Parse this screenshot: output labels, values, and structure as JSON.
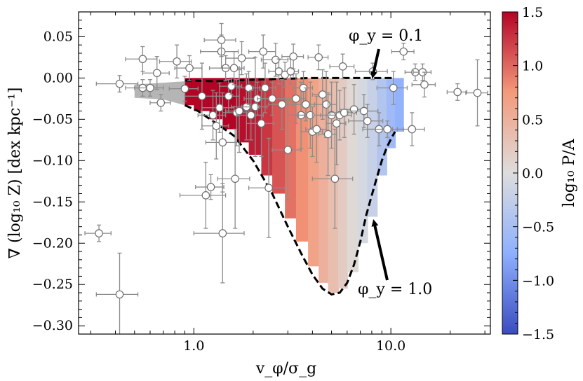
{
  "chart_data": {
    "type": "scatter",
    "title": "",
    "xlabel": "v_φ/σ_g",
    "ylabel": "∇ (log₁₀ Z)  [dex kpc⁻¹]",
    "xscale": "log",
    "xlim": [
      0.26,
      32
    ],
    "ylim": [
      -0.31,
      0.08
    ],
    "x_ticks": [
      {
        "value": 1.0,
        "label": "1.0"
      },
      {
        "value": 10.0,
        "label": "10.0"
      }
    ],
    "y_ticks": [
      {
        "value": 0.05,
        "label": "0.05"
      },
      {
        "value": 0.0,
        "label": "0.00"
      },
      {
        "value": -0.05,
        "label": "−0.05"
      },
      {
        "value": -0.1,
        "label": "−0.10"
      },
      {
        "value": -0.15,
        "label": "−0.15"
      },
      {
        "value": -0.2,
        "label": "−0.20"
      },
      {
        "value": -0.25,
        "label": "−0.25"
      },
      {
        "value": -0.3,
        "label": "−0.30"
      }
    ],
    "colorbar": {
      "label": "log₁₀ P/A",
      "range": [
        -1.5,
        1.5
      ],
      "ticks": [
        {
          "value": 1.5,
          "label": "1.5"
        },
        {
          "value": 1.0,
          "label": "1.0"
        },
        {
          "value": 0.5,
          "label": "0.5"
        },
        {
          "value": 0.0,
          "label": "0.0"
        },
        {
          "value": -0.5,
          "label": "−0.5"
        },
        {
          "value": -1.0,
          "label": "−1.0"
        },
        {
          "value": -1.5,
          "label": "−1.5"
        }
      ],
      "colors": [
        "#3b4cc0",
        "#dddddd",
        "#b40426"
      ]
    },
    "annotations": [
      {
        "text": "φ_y = 0.1",
        "points_to": [
          7.6,
          0.0
        ]
      },
      {
        "text": "φ_y = 1.0",
        "points_to": [
          8.5,
          -0.17
        ]
      }
    ],
    "model": {
      "upper_curve_phi_0_1": {
        "x": [
          0.9,
          1.3,
          2.0,
          4.0,
          10.5
        ],
        "y": [
          -0.003,
          -0.004,
          -0.002,
          0.0,
          0.0
        ]
      },
      "lower_curve_phi_1_0": {
        "x": [
          0.9,
          1.05,
          1.3,
          1.6,
          2.0,
          2.5,
          3.0,
          3.5,
          4.0,
          4.5,
          5.0,
          5.5,
          6.0,
          6.5,
          7.0,
          7.5,
          8.0,
          8.5,
          9.0,
          9.5,
          10.0,
          10.5
        ],
        "y": [
          -0.033,
          -0.04,
          -0.055,
          -0.07,
          -0.1,
          -0.14,
          -0.18,
          -0.212,
          -0.238,
          -0.255,
          -0.262,
          -0.26,
          -0.248,
          -0.226,
          -0.198,
          -0.166,
          -0.142,
          -0.12,
          -0.1,
          -0.085,
          -0.074,
          -0.065
        ]
      },
      "grey_region_x": [
        0.5,
        0.9
      ],
      "columns": [
        {
          "x": 0.9,
          "top": 0.0,
          "bottom": -0.033,
          "value": 1.5
        },
        {
          "x": 1.0,
          "top": 0.0,
          "bottom": -0.04,
          "value": 1.5
        },
        {
          "x": 1.2,
          "top": 0.0,
          "bottom": -0.05,
          "value": 1.5
        },
        {
          "x": 1.4,
          "top": 0.0,
          "bottom": -0.062,
          "value": 1.5
        },
        {
          "x": 1.65,
          "top": 0.0,
          "bottom": -0.078,
          "value": 1.45
        },
        {
          "x": 1.9,
          "top": 0.0,
          "bottom": -0.093,
          "value": 1.38
        },
        {
          "x": 2.2,
          "top": 0.0,
          "bottom": -0.118,
          "value": 1.25
        },
        {
          "x": 2.5,
          "top": 0.0,
          "bottom": -0.14,
          "value": 1.1
        },
        {
          "x": 2.9,
          "top": 0.0,
          "bottom": -0.17,
          "value": 0.95
        },
        {
          "x": 3.3,
          "top": 0.0,
          "bottom": -0.198,
          "value": 0.8
        },
        {
          "x": 3.8,
          "top": 0.0,
          "bottom": -0.228,
          "value": 0.65
        },
        {
          "x": 4.3,
          "top": 0.0,
          "bottom": -0.248,
          "value": 0.5
        },
        {
          "x": 4.8,
          "top": 0.0,
          "bottom": -0.26,
          "value": 0.35
        },
        {
          "x": 5.4,
          "top": 0.0,
          "bottom": -0.255,
          "value": 0.2
        },
        {
          "x": 6.0,
          "top": 0.0,
          "bottom": -0.235,
          "value": 0.05
        },
        {
          "x": 6.8,
          "top": 0.0,
          "bottom": -0.2,
          "value": -0.08
        },
        {
          "x": 7.6,
          "top": 0.0,
          "bottom": -0.168,
          "value": -0.22
        },
        {
          "x": 8.5,
          "top": 0.0,
          "bottom": -0.118,
          "value": -0.4
        },
        {
          "x": 9.5,
          "top": 0.0,
          "bottom": -0.085,
          "value": -0.58
        },
        {
          "x": 10.5,
          "top": 0.0,
          "bottom": -0.065,
          "value": -0.7
        }
      ]
    },
    "points": [
      {
        "x": 0.33,
        "y": -0.188,
        "xerr": 0.05,
        "yerr": 0.01
      },
      {
        "x": 0.42,
        "y": -0.262,
        "xerr": 0.1,
        "yerr": 0.05
      },
      {
        "x": 0.42,
        "y": -0.007,
        "xerr": 0.1,
        "yerr": 0.01
      },
      {
        "x": 0.55,
        "y": 0.023,
        "xerr": 0.1,
        "yerr": 0.015
      },
      {
        "x": 0.55,
        "y": -0.012,
        "xerr": 0.1,
        "yerr": 0.01
      },
      {
        "x": 0.6,
        "y": -0.012,
        "xerr": 0.1,
        "yerr": 0.01
      },
      {
        "x": 0.65,
        "y": 0.006,
        "xerr": 0.1,
        "yerr": 0.02
      },
      {
        "x": 0.68,
        "y": -0.03,
        "xerr": 0.08,
        "yerr": 0.01
      },
      {
        "x": 0.82,
        "y": 0.02,
        "xerr": 0.15,
        "yerr": 0.02
      },
      {
        "x": 0.9,
        "y": -0.013,
        "xerr": 0.15,
        "yerr": 0.015
      },
      {
        "x": 0.95,
        "y": 0.012,
        "xerr": 0.15,
        "yerr": 0.015
      },
      {
        "x": 1.1,
        "y": -0.022,
        "xerr": 0.2,
        "yerr": 0.04
      },
      {
        "x": 1.15,
        "y": -0.142,
        "xerr": 0.3,
        "yerr": 0.04
      },
      {
        "x": 1.22,
        "y": -0.132,
        "xerr": 0.2,
        "yerr": 0.015
      },
      {
        "x": 1.25,
        "y": -0.045,
        "xerr": 0.2,
        "yerr": 0.03
      },
      {
        "x": 1.3,
        "y": -0.058,
        "xerr": 0.2,
        "yerr": 0.04
      },
      {
        "x": 1.35,
        "y": -0.036,
        "xerr": 0.25,
        "yerr": 0.03
      },
      {
        "x": 1.38,
        "y": 0.032,
        "xerr": 0.3,
        "yerr": 0.02
      },
      {
        "x": 1.38,
        "y": 0.046,
        "xerr": 0.25,
        "yerr": 0.02
      },
      {
        "x": 1.4,
        "y": -0.188,
        "xerr": 0.4,
        "yerr": 0.06
      },
      {
        "x": 1.4,
        "y": -0.078,
        "xerr": 0.25,
        "yerr": 0.06
      },
      {
        "x": 1.45,
        "y": 0.012,
        "xerr": 0.25,
        "yerr": 0.015
      },
      {
        "x": 1.5,
        "y": -0.022,
        "xerr": 0.2,
        "yerr": 0.02
      },
      {
        "x": 1.55,
        "y": -0.01,
        "xerr": 0.2,
        "yerr": 0.01
      },
      {
        "x": 1.6,
        "y": 0.012,
        "xerr": 0.2,
        "yerr": 0.02
      },
      {
        "x": 1.62,
        "y": -0.122,
        "xerr": 0.3,
        "yerr": 0.06
      },
      {
        "x": 1.65,
        "y": -0.042,
        "xerr": 0.25,
        "yerr": 0.04
      },
      {
        "x": 1.7,
        "y": -0.04,
        "xerr": 0.25,
        "yerr": 0.05
      },
      {
        "x": 1.75,
        "y": 0.024,
        "xerr": 0.3,
        "yerr": 0.02
      },
      {
        "x": 1.85,
        "y": -0.035,
        "xerr": 0.3,
        "yerr": 0.04
      },
      {
        "x": 1.9,
        "y": -0.012,
        "xerr": 0.25,
        "yerr": 0.02
      },
      {
        "x": 1.95,
        "y": -0.045,
        "xerr": 0.3,
        "yerr": 0.03
      },
      {
        "x": 2.05,
        "y": -0.035,
        "xerr": 0.3,
        "yerr": 0.06
      },
      {
        "x": 2.1,
        "y": -0.025,
        "xerr": 0.3,
        "yerr": 0.02
      },
      {
        "x": 2.2,
        "y": -0.055,
        "xerr": 0.35,
        "yerr": 0.04
      },
      {
        "x": 2.25,
        "y": 0.032,
        "xerr": 0.35,
        "yerr": 0.02
      },
      {
        "x": 2.3,
        "y": -0.012,
        "xerr": 0.3,
        "yerr": 0.03
      },
      {
        "x": 2.4,
        "y": -0.133,
        "xerr": 0.5,
        "yerr": 0.06
      },
      {
        "x": 2.5,
        "y": -0.025,
        "xerr": 0.4,
        "yerr": 0.02
      },
      {
        "x": 2.6,
        "y": 0.022,
        "xerr": 0.4,
        "yerr": 0.02
      },
      {
        "x": 2.7,
        "y": 0.008,
        "xerr": 0.3,
        "yerr": 0.015
      },
      {
        "x": 2.8,
        "y": -0.032,
        "xerr": 0.4,
        "yerr": 0.03
      },
      {
        "x": 2.9,
        "y": 0.004,
        "xerr": 0.3,
        "yerr": 0.015
      },
      {
        "x": 3.0,
        "y": -0.087,
        "xerr": 0.5,
        "yerr": 0.06
      },
      {
        "x": 3.1,
        "y": 0.008,
        "xerr": 0.3,
        "yerr": 0.015
      },
      {
        "x": 3.2,
        "y": 0.026,
        "xerr": 0.4,
        "yerr": 0.015
      },
      {
        "x": 3.3,
        "y": -0.025,
        "xerr": 0.4,
        "yerr": 0.03
      },
      {
        "x": 3.5,
        "y": -0.045,
        "xerr": 0.5,
        "yerr": 0.04
      },
      {
        "x": 3.6,
        "y": -0.012,
        "xerr": 0.4,
        "yerr": 0.02
      },
      {
        "x": 3.7,
        "y": -0.032,
        "xerr": 0.5,
        "yerr": 0.02
      },
      {
        "x": 3.9,
        "y": -0.045,
        "xerr": 0.5,
        "yerr": 0.04
      },
      {
        "x": 4.0,
        "y": -0.065,
        "xerr": 0.5,
        "yerr": 0.03
      },
      {
        "x": 4.2,
        "y": -0.062,
        "xerr": 0.5,
        "yerr": 0.04
      },
      {
        "x": 4.3,
        "y": 0.025,
        "xerr": 0.5,
        "yerr": 0.015
      },
      {
        "x": 4.5,
        "y": -0.02,
        "xerr": 0.5,
        "yerr": 0.03
      },
      {
        "x": 4.7,
        "y": -0.032,
        "xerr": 0.6,
        "yerr": 0.04
      },
      {
        "x": 4.8,
        "y": -0.068,
        "xerr": 0.5,
        "yerr": 0.05
      },
      {
        "x": 5.0,
        "y": -0.045,
        "xerr": 0.6,
        "yerr": 0.04
      },
      {
        "x": 5.2,
        "y": -0.122,
        "xerr": 1.2,
        "yerr": 0.06
      },
      {
        "x": 5.3,
        "y": -0.055,
        "xerr": 0.6,
        "yerr": 0.05
      },
      {
        "x": 5.5,
        "y": -0.045,
        "xerr": 0.8,
        "yerr": 0.03
      },
      {
        "x": 5.7,
        "y": 0.014,
        "xerr": 0.8,
        "yerr": 0.015
      },
      {
        "x": 5.8,
        "y": -0.042,
        "xerr": 0.9,
        "yerr": 0.03
      },
      {
        "x": 6.5,
        "y": -0.038,
        "xerr": 1.0,
        "yerr": 0.03
      },
      {
        "x": 7.3,
        "y": -0.04,
        "xerr": 1.3,
        "yerr": 0.02
      },
      {
        "x": 7.6,
        "y": -0.052,
        "xerr": 1.5,
        "yerr": 0.02
      },
      {
        "x": 8.1,
        "y": 0.008,
        "xerr": 1.5,
        "yerr": 0.01
      },
      {
        "x": 8.7,
        "y": -0.062,
        "xerr": 1.5,
        "yerr": 0.02
      },
      {
        "x": 9.6,
        "y": -0.062,
        "xerr": 2.0,
        "yerr": 0.01
      },
      {
        "x": 10.3,
        "y": -0.012,
        "xerr": 1.8,
        "yerr": 0.02
      },
      {
        "x": 11.6,
        "y": 0.032,
        "xerr": 1.5,
        "yerr": 0.01
      },
      {
        "x": 12.8,
        "y": -0.062,
        "xerr": 2.0,
        "yerr": 0.02
      },
      {
        "x": 13.3,
        "y": 0.007,
        "xerr": 1.5,
        "yerr": 0.01
      },
      {
        "x": 14.5,
        "y": 0.007,
        "xerr": 1.5,
        "yerr": 0.01
      },
      {
        "x": 14.8,
        "y": -0.008,
        "xerr": 2.0,
        "yerr": 0.015
      },
      {
        "x": 21.8,
        "y": -0.017,
        "xerr": 2.5,
        "yerr": 0.01
      },
      {
        "x": 27.5,
        "y": -0.018,
        "xerr": 3.5,
        "yerr": 0.04
      }
    ]
  }
}
